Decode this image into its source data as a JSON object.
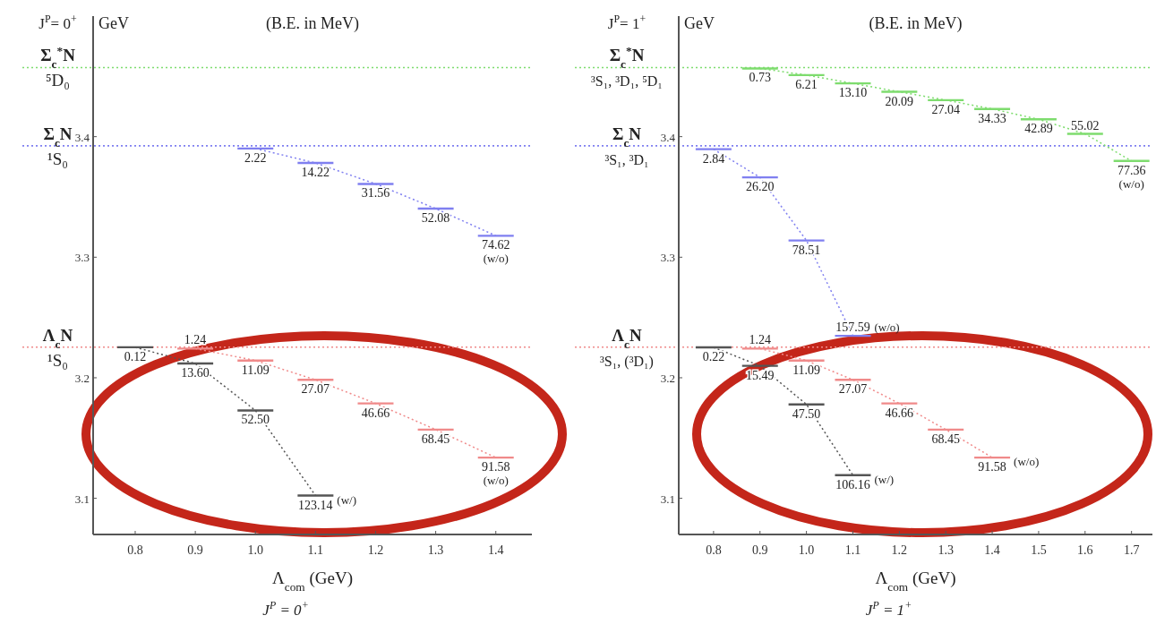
{
  "chart_data": [
    {
      "type": "line",
      "title": "J$^{P}$= 0$^{+}$",
      "subtitle": "(B.E. in MeV)",
      "ylabel": "GeV",
      "xlabel": "Λ$_{com}$ (GeV)",
      "xlim": [
        0.73,
        1.46
      ],
      "xticks": [
        0.8,
        0.9,
        {
          "value": 1,
          "label": "1.0"
        },
        1.1,
        1.2,
        1.3,
        1.4
      ],
      "ylim": [
        3.07,
        3.5
      ],
      "yticks": [
        3.1,
        3.2,
        3.3,
        3.4
      ],
      "line_style": "dotted",
      "ref_lines": [
        {
          "axis": "y",
          "value": 3.4573,
          "label": "Σ$_{c}$$^{*}$N",
          "color": "#7edc6e",
          "line_style": "dotted"
        },
        {
          "axis": "y",
          "value": 3.3924,
          "label": "Σ$_{c}$N",
          "color": "#7f7ff0",
          "line_style": "dotted"
        },
        {
          "axis": "y",
          "value": 3.2254,
          "label": "Λ$_{c}$N",
          "color": "#f08a8a",
          "line_style": "dotted"
        }
      ],
      "series": [
        {
          "color": "#555555",
          "x": [
            0.8,
            0.9,
            1,
            1.1
          ],
          "values": [
            3.2253,
            3.2118,
            3.1729,
            3.1023
          ]
        },
        {
          "color": "#f08a8a",
          "x": [
            0.9,
            1,
            1.1,
            1.2,
            1.3,
            1.4
          ],
          "values": [
            3.2242,
            3.2143,
            3.1983,
            3.1787,
            3.157,
            3.1338
          ]
        },
        {
          "color": "#7f7ff0",
          "x": [
            1,
            1.1,
            1.2,
            1.3,
            1.4
          ],
          "values": [
            3.3902,
            3.3782,
            3.3608,
            3.3403,
            3.3178
          ]
        }
      ],
      "annotations": [
        {
          "text": "⁵D₀",
          "y": 3.4573
        },
        {
          "text": "¹S₀",
          "y": 3.3924
        },
        {
          "text": "¹S₀",
          "y": 3.2254
        },
        {
          "text": "0.12",
          "x": 0.8,
          "y": 3.2253
        },
        {
          "text": "13.60",
          "x": 0.9,
          "y": 3.2118
        },
        {
          "text": "52.50",
          "x": 1,
          "y": 3.1729
        },
        {
          "text": "123.14",
          "x": 1.1,
          "y": 3.1023
        },
        {
          "text": "1.24",
          "x": 0.9,
          "y": 3.2242
        },
        {
          "text": "11.09",
          "x": 1,
          "y": 3.2143
        },
        {
          "text": "27.07",
          "x": 1.1,
          "y": 3.1983
        },
        {
          "text": "46.66",
          "x": 1.2,
          "y": 3.1787
        },
        {
          "text": "68.45",
          "x": 1.3,
          "y": 3.157
        },
        {
          "text": "91.58",
          "x": 1.4,
          "y": 3.1338
        },
        {
          "text": "2.22",
          "x": 1,
          "y": 3.3902
        },
        {
          "text": "14.22",
          "x": 1.1,
          "y": 3.3782
        },
        {
          "text": "31.56",
          "x": 1.2,
          "y": 3.3608
        },
        {
          "text": "52.08",
          "x": 1.3,
          "y": 3.3403
        },
        {
          "text": "74.62",
          "x": 1.4,
          "y": 3.3178
        },
        {
          "text": "(w/)",
          "x": 1.1,
          "y": 3.1023
        },
        {
          "text": "(w/o)",
          "x": 1.4,
          "y": 3.1338
        },
        {
          "text": "(w/o)",
          "x": 1.4,
          "y": 3.3178
        },
        "J$^{P}$ = 0$^{+}$"
      ]
    },
    {
      "type": "line",
      "title": "J$^{P}$= 1$^{+}$",
      "subtitle": "(B.E. in MeV)",
      "ylabel": "GeV",
      "xlabel": "Λ$_{com}$ (GeV)",
      "xlim": [
        0.725,
        1.745
      ],
      "xticks": [
        0.8,
        0.9,
        {
          "value": 1,
          "label": "1.0"
        },
        1.1,
        1.2,
        1.3,
        1.4,
        1.5,
        1.6,
        1.7
      ],
      "ylim": [
        3.07,
        3.5
      ],
      "yticks": [
        3.1,
        3.2,
        3.3,
        3.4
      ],
      "line_style": "dotted",
      "ref_lines": [
        {
          "axis": "y",
          "value": 3.4573,
          "label": "Σ$_{c}$$^{*}$N",
          "color": "#7edc6e",
          "line_style": "dotted"
        },
        {
          "axis": "y",
          "value": 3.3924,
          "label": "Σ$_{c}$N",
          "color": "#7f7ff0",
          "line_style": "dotted"
        },
        {
          "axis": "y",
          "value": 3.2254,
          "label": "Λ$_{c}$N",
          "color": "#f08a8a",
          "line_style": "dotted"
        }
      ],
      "series": [
        {
          "color": "#7edc6e",
          "x": [
            0.9,
            1,
            1.1,
            1.2,
            1.3,
            1.4,
            1.5,
            1.6,
            1.7
          ],
          "values": [
            3.4566,
            3.4511,
            3.4442,
            3.4372,
            3.4303,
            3.423,
            3.4144,
            3.4023,
            3.3799
          ]
        },
        {
          "color": "#7f7ff0",
          "x": [
            0.8,
            0.9,
            1,
            1.1
          ],
          "values": [
            3.3896,
            3.3662,
            3.3139,
            3.2348
          ]
        },
        {
          "color": "#f08a8a",
          "x": [
            0.9,
            1,
            1.1,
            1.2,
            1.3,
            1.4
          ],
          "values": [
            3.2242,
            3.2143,
            3.1983,
            3.1787,
            3.157,
            3.1338
          ]
        },
        {
          "color": "#555555",
          "x": [
            0.8,
            0.9,
            1,
            1.1
          ],
          "values": [
            3.2252,
            3.2099,
            3.1779,
            3.1192
          ]
        }
      ],
      "annotations": [
        {
          "text": "³S₁, ³D₁, ⁵D₁",
          "y": 3.4573
        },
        {
          "text": "³S₁, ³D₁",
          "y": 3.3924
        },
        {
          "text": "³S₁, (³D₁)",
          "y": 3.2254
        },
        {
          "text": "0.73",
          "x": 0.9,
          "y": 3.4566
        },
        {
          "text": "6.21",
          "x": 1,
          "y": 3.4511
        },
        {
          "text": "13.10",
          "x": 1.1,
          "y": 3.4442
        },
        {
          "text": "20.09",
          "x": 1.2,
          "y": 3.4372
        },
        {
          "text": "27.04",
          "x": 1.3,
          "y": 3.4303
        },
        {
          "text": "34.33",
          "x": 1.4,
          "y": 3.423
        },
        {
          "text": "42.89",
          "x": 1.5,
          "y": 3.4144
        },
        {
          "text": "55.02",
          "x": 1.6,
          "y": 3.4023
        },
        {
          "text": "77.36",
          "x": 1.7,
          "y": 3.3799
        },
        {
          "text": "2.84",
          "x": 0.8,
          "y": 3.3896
        },
        {
          "text": "26.20",
          "x": 0.9,
          "y": 3.3662
        },
        {
          "text": "78.51",
          "x": 1,
          "y": 3.3139
        },
        {
          "text": "157.59",
          "x": 1.1,
          "y": 3.2348
        },
        {
          "text": "1.24",
          "x": 0.9,
          "y": 3.2242
        },
        {
          "text": "11.09",
          "x": 1,
          "y": 3.2143
        },
        {
          "text": "27.07",
          "x": 1.1,
          "y": 3.1983
        },
        {
          "text": "46.66",
          "x": 1.2,
          "y": 3.1787
        },
        {
          "text": "68.45",
          "x": 1.3,
          "y": 3.157
        },
        {
          "text": "91.58",
          "x": 1.4,
          "y": 3.1338
        },
        {
          "text": "0.22",
          "x": 0.8,
          "y": 3.2252
        },
        {
          "text": "15.49",
          "x": 0.9,
          "y": 3.2099
        },
        {
          "text": "47.50",
          "x": 1,
          "y": 3.1779
        },
        {
          "text": "106.16",
          "x": 1.1,
          "y": 3.1192
        },
        {
          "text": "(w/o)",
          "x": 1.7,
          "y": 3.3799
        },
        {
          "text": "(w/o)",
          "x": 1.1,
          "y": 3.2348
        },
        {
          "text": "(w/)",
          "x": 1.1,
          "y": 3.1192
        },
        {
          "text": "(w/o)",
          "x": 1.4,
          "y": 3.1338
        },
        "J$^{P}$ = 1$^{+}$"
      ]
    }
  ]
}
